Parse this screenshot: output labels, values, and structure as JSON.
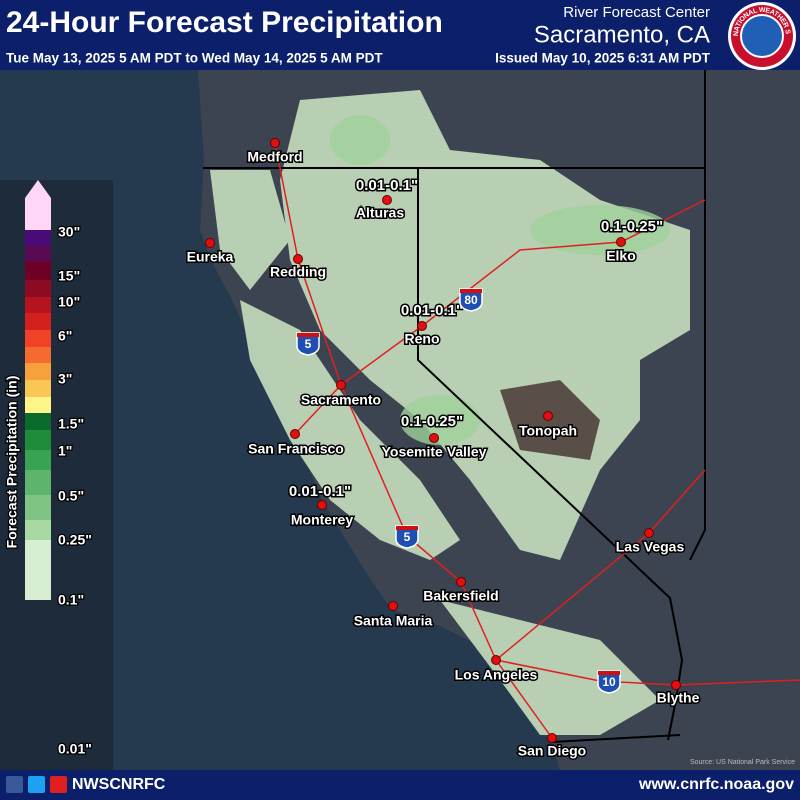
{
  "header": {
    "title": "24-Hour Forecast Precipitation",
    "period": "Tue May 13, 2025 5 AM PDT to Wed May 14, 2025 5 AM PDT",
    "center": "River Forecast Center",
    "location": "Sacramento, CA",
    "issued": "Issued May 10, 2025 6:31 AM PDT",
    "logo_text": "NATIONAL WEATHER SERVICE"
  },
  "legend": {
    "title": "Forecast Precipitation (in)",
    "labels": [
      "30\"",
      "15\"",
      "10\"",
      "6\"",
      "3\"",
      "1.5\"",
      "1\"",
      "0.5\"",
      "0.25\"",
      "0.1\"",
      "0.01\""
    ],
    "colors": [
      "#ffd6f5",
      "#4a0a78",
      "#5a0a50",
      "#6e0026",
      "#8c0a22",
      "#b3141e",
      "#d4201c",
      "#ef4226",
      "#f56a2e",
      "#f7a03e",
      "#fac656",
      "#fff48a",
      "#0b6b2c",
      "#1f8c3c",
      "#38a352",
      "#5db46c",
      "#7fc484",
      "#a9d9a2",
      "#d8eed2"
    ]
  },
  "map": {
    "cities": [
      "Medford",
      "Alturas",
      "Eureka",
      "Redding",
      "Elko",
      "Reno",
      "Sacramento",
      "San Francisco",
      "Yosemite Valley",
      "Tonopah",
      "Monterey",
      "Las Vegas",
      "Bakersfield",
      "Santa Maria",
      "Los Angeles",
      "Blythe",
      "San Diego"
    ],
    "amounts": [
      "0.01-0.1\"",
      "0.1-0.25\"",
      "0.01-0.1\"",
      "0.1-0.25\"",
      "0.01-0.1\""
    ],
    "highways": [
      "80",
      "5",
      "5",
      "10"
    ],
    "source": "Source: US National Park Service"
  },
  "footer": {
    "handle": "NWSCNRFC",
    "url": "www.cnrfc.noaa.gov"
  }
}
